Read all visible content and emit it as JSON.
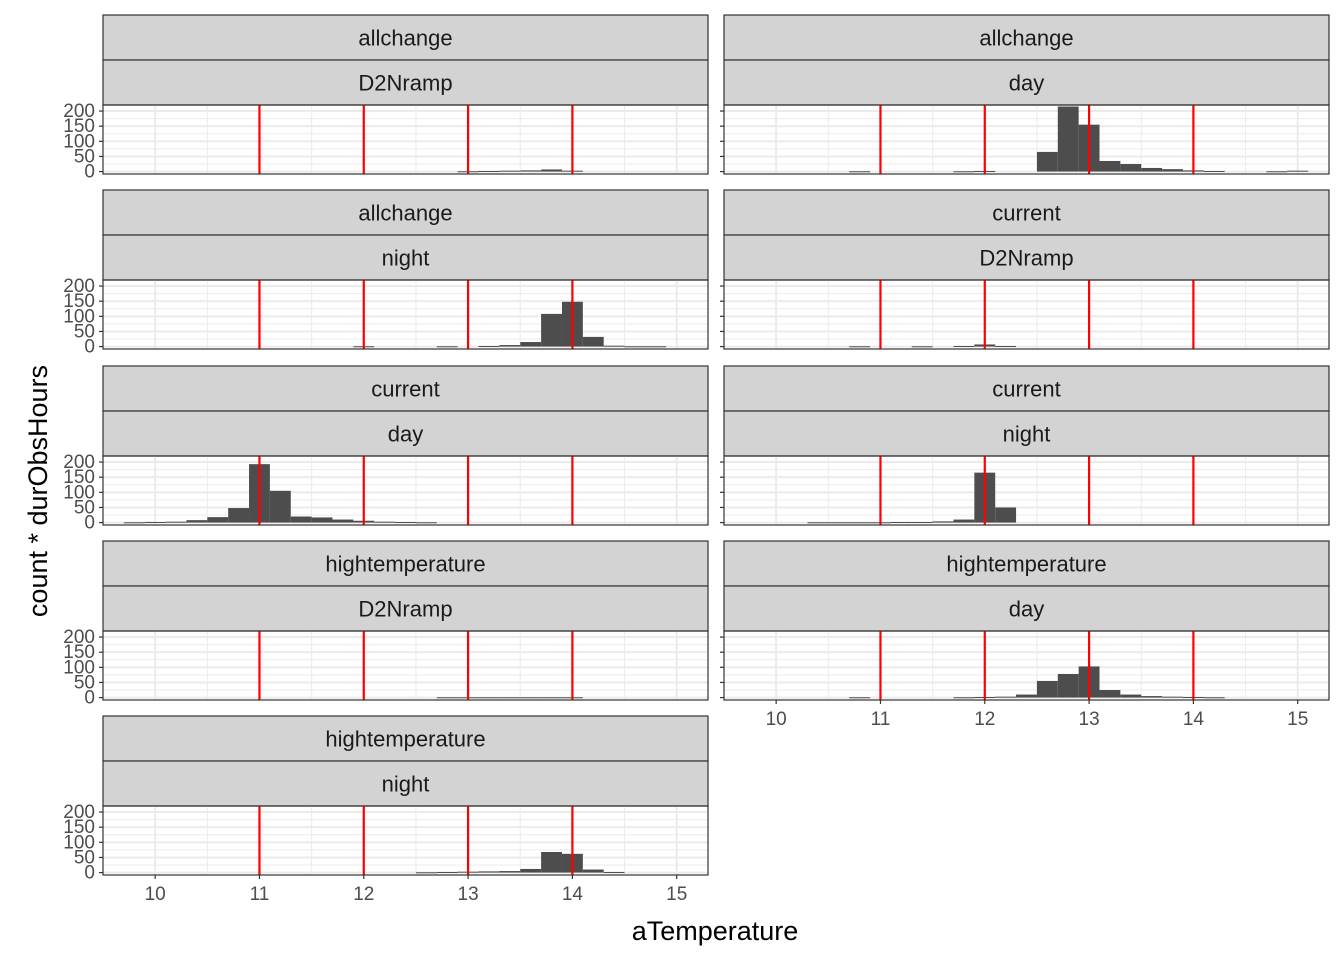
{
  "chart_data": {
    "type": "bar",
    "xlabel": "aTemperature",
    "ylabel": "count * durObsHours",
    "xlim": [
      9.5,
      15.3
    ],
    "ylim": [
      -8,
      220
    ],
    "x_ticks": [
      10,
      11,
      12,
      13,
      14,
      15
    ],
    "y_ticks": [
      0,
      50,
      100,
      150,
      200
    ],
    "bin_width": 0.2,
    "vlines": [
      11,
      12,
      13,
      14
    ],
    "vline_color": "#ff0000",
    "bar_color": "#4d4d4d",
    "strip_fill": "#d3d3d3",
    "panels": [
      {
        "strip1": "allchange",
        "strip2": "D2Nramp",
        "bars": [
          {
            "x": 13.0,
            "y": 1
          },
          {
            "x": 13.2,
            "y": 2
          },
          {
            "x": 13.4,
            "y": 3
          },
          {
            "x": 13.6,
            "y": 4
          },
          {
            "x": 13.8,
            "y": 7
          },
          {
            "x": 14.0,
            "y": 3
          }
        ]
      },
      {
        "strip1": "allchange",
        "strip2": "day",
        "bars": [
          {
            "x": 10.8,
            "y": 1
          },
          {
            "x": 11.8,
            "y": 1
          },
          {
            "x": 12.0,
            "y": 2
          },
          {
            "x": 12.6,
            "y": 65
          },
          {
            "x": 12.8,
            "y": 215
          },
          {
            "x": 13.0,
            "y": 155
          },
          {
            "x": 13.2,
            "y": 35
          },
          {
            "x": 13.4,
            "y": 25
          },
          {
            "x": 13.6,
            "y": 12
          },
          {
            "x": 13.8,
            "y": 8
          },
          {
            "x": 14.0,
            "y": 4
          },
          {
            "x": 14.2,
            "y": 2
          },
          {
            "x": 14.8,
            "y": 1
          },
          {
            "x": 15.0,
            "y": 3
          }
        ]
      },
      {
        "strip1": "allchange",
        "strip2": "night",
        "bars": [
          {
            "x": 12.0,
            "y": 1
          },
          {
            "x": 12.8,
            "y": 1
          },
          {
            "x": 13.2,
            "y": 2
          },
          {
            "x": 13.4,
            "y": 5
          },
          {
            "x": 13.6,
            "y": 15
          },
          {
            "x": 13.8,
            "y": 108
          },
          {
            "x": 14.0,
            "y": 148
          },
          {
            "x": 14.2,
            "y": 32
          },
          {
            "x": 14.4,
            "y": 3
          },
          {
            "x": 14.6,
            "y": 1
          },
          {
            "x": 14.8,
            "y": 1
          }
        ]
      },
      {
        "strip1": "current",
        "strip2": "D2Nramp",
        "bars": [
          {
            "x": 10.8,
            "y": 1
          },
          {
            "x": 11.4,
            "y": 1
          },
          {
            "x": 11.8,
            "y": 2
          },
          {
            "x": 12.0,
            "y": 7
          },
          {
            "x": 12.2,
            "y": 2
          }
        ]
      },
      {
        "strip1": "current",
        "strip2": "day",
        "bars": [
          {
            "x": 9.8,
            "y": 1
          },
          {
            "x": 10.0,
            "y": 2
          },
          {
            "x": 10.2,
            "y": 3
          },
          {
            "x": 10.4,
            "y": 8
          },
          {
            "x": 10.6,
            "y": 18
          },
          {
            "x": 10.8,
            "y": 48
          },
          {
            "x": 11.0,
            "y": 193
          },
          {
            "x": 11.2,
            "y": 105
          },
          {
            "x": 11.4,
            "y": 20
          },
          {
            "x": 11.6,
            "y": 17
          },
          {
            "x": 11.8,
            "y": 10
          },
          {
            "x": 12.0,
            "y": 6
          },
          {
            "x": 12.2,
            "y": 3
          },
          {
            "x": 12.4,
            "y": 2
          },
          {
            "x": 12.6,
            "y": 1
          }
        ]
      },
      {
        "strip1": "current",
        "strip2": "night",
        "bars": [
          {
            "x": 10.4,
            "y": 1
          },
          {
            "x": 10.6,
            "y": 1
          },
          {
            "x": 10.8,
            "y": 1
          },
          {
            "x": 11.0,
            "y": 1
          },
          {
            "x": 11.2,
            "y": 2
          },
          {
            "x": 11.4,
            "y": 2
          },
          {
            "x": 11.6,
            "y": 4
          },
          {
            "x": 11.8,
            "y": 10
          },
          {
            "x": 12.0,
            "y": 165
          },
          {
            "x": 12.2,
            "y": 50
          }
        ]
      },
      {
        "strip1": "hightemperature",
        "strip2": "D2Nramp",
        "bars": [
          {
            "x": 12.8,
            "y": 1
          },
          {
            "x": 13.0,
            "y": 1
          },
          {
            "x": 13.2,
            "y": 1
          },
          {
            "x": 13.4,
            "y": 1
          },
          {
            "x": 13.6,
            "y": 1
          },
          {
            "x": 13.8,
            "y": 1
          },
          {
            "x": 14.0,
            "y": 1
          }
        ]
      },
      {
        "strip1": "hightemperature",
        "strip2": "day",
        "bars": [
          {
            "x": 10.8,
            "y": 1
          },
          {
            "x": 11.8,
            "y": 1
          },
          {
            "x": 12.0,
            "y": 2
          },
          {
            "x": 12.2,
            "y": 3
          },
          {
            "x": 12.4,
            "y": 10
          },
          {
            "x": 12.6,
            "y": 55
          },
          {
            "x": 12.8,
            "y": 78
          },
          {
            "x": 13.0,
            "y": 103
          },
          {
            "x": 13.2,
            "y": 25
          },
          {
            "x": 13.4,
            "y": 10
          },
          {
            "x": 13.6,
            "y": 5
          },
          {
            "x": 13.8,
            "y": 3
          },
          {
            "x": 14.0,
            "y": 2
          },
          {
            "x": 14.2,
            "y": 1
          }
        ]
      },
      {
        "strip1": "hightemperature",
        "strip2": "night",
        "bars": [
          {
            "x": 12.6,
            "y": 1
          },
          {
            "x": 12.8,
            "y": 2
          },
          {
            "x": 13.0,
            "y": 3
          },
          {
            "x": 13.2,
            "y": 4
          },
          {
            "x": 13.4,
            "y": 5
          },
          {
            "x": 13.6,
            "y": 12
          },
          {
            "x": 13.8,
            "y": 68
          },
          {
            "x": 14.0,
            "y": 62
          },
          {
            "x": 14.2,
            "y": 10
          },
          {
            "x": 14.4,
            "y": 2
          }
        ]
      }
    ]
  }
}
